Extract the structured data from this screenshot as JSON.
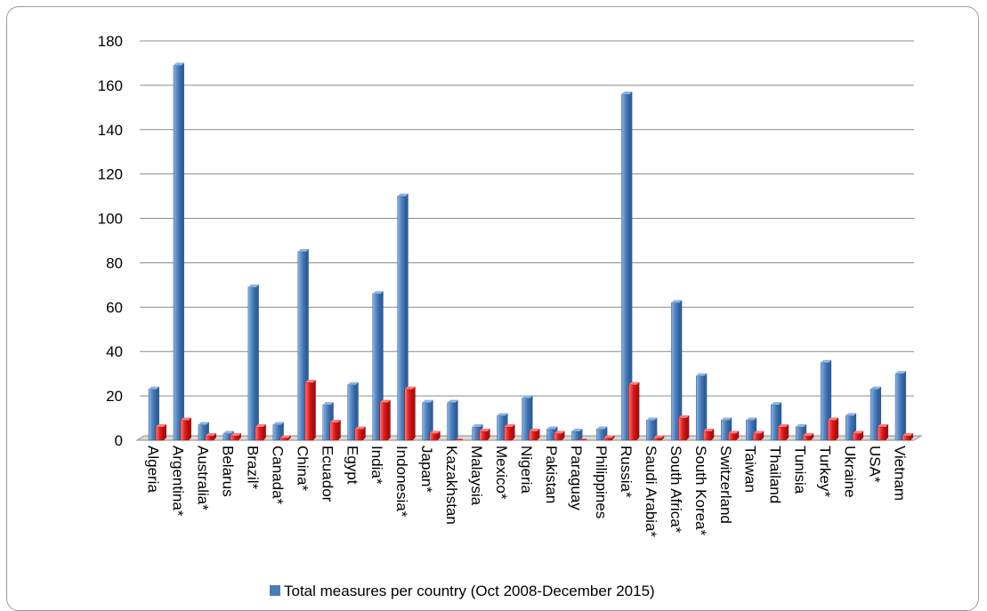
{
  "chart_data": {
    "type": "bar",
    "categories": [
      "Algeria",
      "Argentina*",
      "Australia*",
      "Belarus",
      "Brazil*",
      "Canada*",
      "China*",
      "Ecuador",
      "Egypt",
      "India*",
      "Indonesia*",
      "Japan*",
      "Kazakhstan",
      "Malaysia",
      "Mexico*",
      "Nigeria",
      "Pakistan",
      "Paraguay",
      "Philippines",
      "Russia*",
      "Saudi Arabia*",
      "South Africa*",
      "South Korea*",
      "Switzerland",
      "Taiwan",
      "Thailand",
      "Tunisia",
      "Turkey*",
      "Ukraine",
      "USA*",
      "Vietnam"
    ],
    "series": [
      {
        "name": "Total measures per country (Oct 2008-December 2015)",
        "color": "#4a7ebb",
        "values": [
          23,
          169,
          7,
          3,
          69,
          7,
          85,
          16,
          25,
          66,
          110,
          17,
          17,
          6,
          11,
          19,
          5,
          4,
          5,
          156,
          9,
          62,
          29,
          9,
          9,
          16,
          6,
          35,
          11,
          23,
          30
        ]
      },
      {
        "color": "#e41a1a",
        "values": [
          6,
          9,
          2,
          2,
          6,
          1,
          26,
          8,
          5,
          17,
          23,
          3,
          0,
          4,
          6,
          4,
          3,
          0,
          1,
          25,
          1,
          10,
          4,
          3,
          3,
          6,
          2,
          9,
          3,
          6,
          2
        ]
      }
    ],
    "yticks": [
      "0",
      "20",
      "40",
      "60",
      "80",
      "100",
      "120",
      "140",
      "160",
      "180"
    ],
    "ylim": [
      0,
      180
    ],
    "grid": true,
    "legend_position": "bottom"
  }
}
